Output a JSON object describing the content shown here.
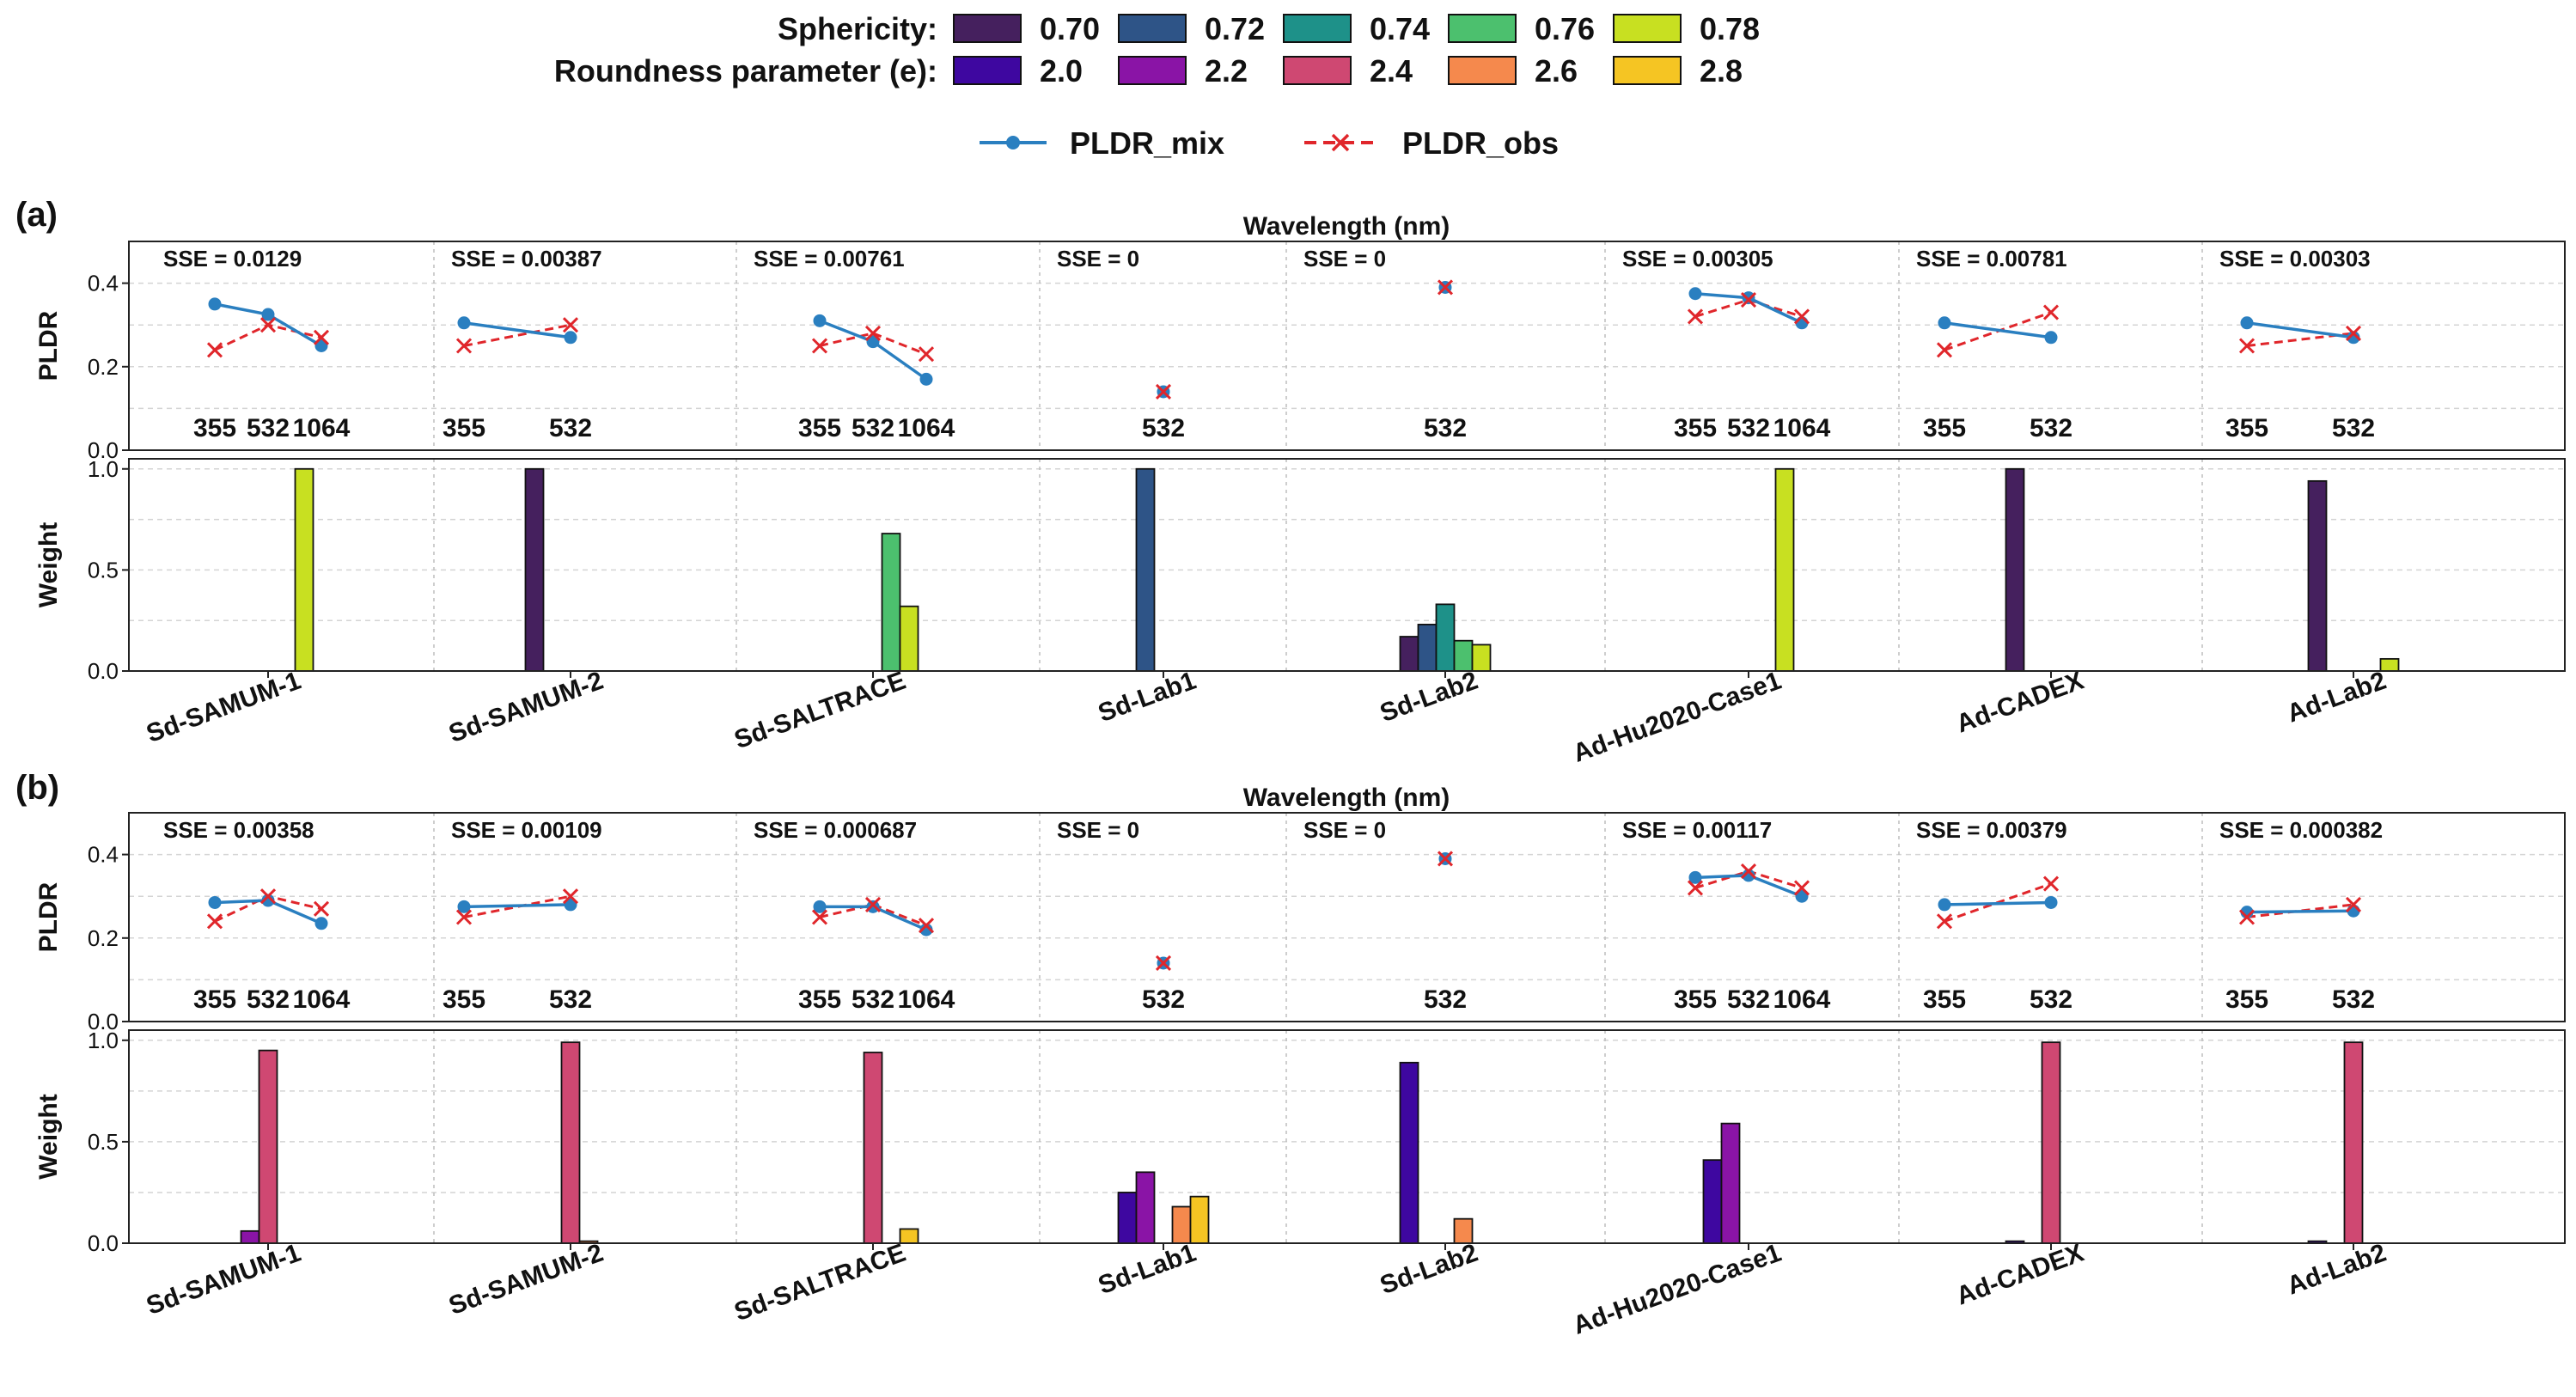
{
  "legend": {
    "sphericity_label": "Sphericity:",
    "sphericity_items": [
      {
        "label": "0.70",
        "color": "#45205e"
      },
      {
        "label": "0.72",
        "color": "#2e5487"
      },
      {
        "label": "0.74",
        "color": "#1e9189"
      },
      {
        "label": "0.76",
        "color": "#4cc06e"
      },
      {
        "label": "0.78",
        "color": "#c8e021"
      }
    ],
    "roundness_label": "Roundness parameter (e):",
    "roundness_items": [
      {
        "label": "2.0",
        "color": "#3e07a0"
      },
      {
        "label": "2.2",
        "color": "#8a14a6"
      },
      {
        "label": "2.4",
        "color": "#cf4872"
      },
      {
        "label": "2.6",
        "color": "#f5894d"
      },
      {
        "label": "2.8",
        "color": "#f5c523"
      }
    ],
    "lines": [
      {
        "label": "PLDR_mix",
        "color": "#2a7fc0",
        "marker": "circle",
        "style": "solid"
      },
      {
        "label": "PLDR_obs",
        "color": "#e0262b",
        "marker": "x",
        "style": "dashed"
      }
    ]
  },
  "panel_labels": [
    "(a)",
    "(b)"
  ],
  "chart_data": [
    {
      "panel": "(a)",
      "type": "line+bar",
      "color_key": "sphericity",
      "categories": [
        "Sd-SAMUM-1",
        "Sd-SAMUM-2",
        "Sd-SALTRACE",
        "Sd-Lab1",
        "Sd-Lab2",
        "Ad-Hu2020-Case1",
        "Ad-CADEX",
        "Ad-Lab2"
      ],
      "pldr": {
        "title": "Wavelength (nm)",
        "ylabel": "PLDR",
        "ylim": [
          0,
          0.5
        ],
        "yticks": [
          "0.0",
          "0.2",
          "0.4"
        ],
        "groups": [
          {
            "sse": "SSE = 0.0129",
            "wavelengths": [
              "355",
              "532",
              "1064"
            ],
            "mix": [
              0.35,
              0.325,
              0.25
            ],
            "obs": [
              0.24,
              0.3,
              0.27
            ]
          },
          {
            "sse": "SSE = 0.00387",
            "wavelengths": [
              "355",
              "532"
            ],
            "mix": [
              0.305,
              0.27
            ],
            "obs": [
              0.25,
              0.3
            ]
          },
          {
            "sse": "SSE = 0.00761",
            "wavelengths": [
              "355",
              "532",
              "1064"
            ],
            "mix": [
              0.31,
              0.26,
              0.17
            ],
            "obs": [
              0.25,
              0.28,
              0.23
            ]
          },
          {
            "sse": "SSE = 0",
            "wavelengths": [
              "532"
            ],
            "mix": [
              0.14
            ],
            "obs": [
              0.14
            ]
          },
          {
            "sse": "SSE = 0",
            "wavelengths": [
              "532"
            ],
            "mix": [
              0.39
            ],
            "obs": [
              0.39
            ]
          },
          {
            "sse": "SSE = 0.00305",
            "wavelengths": [
              "355",
              "532",
              "1064"
            ],
            "mix": [
              0.375,
              0.365,
              0.305
            ],
            "obs": [
              0.32,
              0.36,
              0.32
            ]
          },
          {
            "sse": "SSE = 0.00781",
            "wavelengths": [
              "355",
              "532"
            ],
            "mix": [
              0.305,
              0.27
            ],
            "obs": [
              0.24,
              0.33
            ]
          },
          {
            "sse": "SSE = 0.00303",
            "wavelengths": [
              "355",
              "532"
            ],
            "mix": [
              0.305,
              0.27
            ],
            "obs": [
              0.25,
              0.28
            ]
          }
        ]
      },
      "weights": {
        "ylabel": "Weight",
        "ylim": [
          0,
          1.05
        ],
        "yticks": [
          "0.0",
          "0.5",
          "1.0"
        ],
        "series_labels": [
          "0.70",
          "0.72",
          "0.74",
          "0.76",
          "0.78"
        ],
        "values": [
          [
            0,
            0,
            0,
            0,
            1.0
          ],
          [
            1.0,
            0,
            0,
            0,
            0
          ],
          [
            0,
            0,
            0,
            0.68,
            0.32
          ],
          [
            0,
            1.0,
            0,
            0,
            0
          ],
          [
            0.17,
            0.23,
            0.33,
            0.15,
            0.13
          ],
          [
            0,
            0,
            0,
            0,
            1.0
          ],
          [
            1.0,
            0,
            0,
            0,
            0
          ],
          [
            0.94,
            0,
            0,
            0,
            0.06
          ]
        ]
      }
    },
    {
      "panel": "(b)",
      "type": "line+bar",
      "color_key": "roundness",
      "categories": [
        "Sd-SAMUM-1",
        "Sd-SAMUM-2",
        "Sd-SALTRACE",
        "Sd-Lab1",
        "Sd-Lab2",
        "Ad-Hu2020-Case1",
        "Ad-CADEX",
        "Ad-Lab2"
      ],
      "pldr": {
        "title": "Wavelength (nm)",
        "ylabel": "PLDR",
        "ylim": [
          0,
          0.5
        ],
        "yticks": [
          "0.0",
          "0.2",
          "0.4"
        ],
        "groups": [
          {
            "sse": "SSE = 0.00358",
            "wavelengths": [
              "355",
              "532",
              "1064"
            ],
            "mix": [
              0.285,
              0.29,
              0.235
            ],
            "obs": [
              0.24,
              0.3,
              0.27
            ]
          },
          {
            "sse": "SSE = 0.00109",
            "wavelengths": [
              "355",
              "532"
            ],
            "mix": [
              0.275,
              0.28
            ],
            "obs": [
              0.25,
              0.3
            ]
          },
          {
            "sse": "SSE = 0.000687",
            "wavelengths": [
              "355",
              "532",
              "1064"
            ],
            "mix": [
              0.275,
              0.275,
              0.22
            ],
            "obs": [
              0.25,
              0.28,
              0.23
            ]
          },
          {
            "sse": "SSE = 0",
            "wavelengths": [
              "532"
            ],
            "mix": [
              0.14
            ],
            "obs": [
              0.14
            ]
          },
          {
            "sse": "SSE = 0",
            "wavelengths": [
              "532"
            ],
            "mix": [
              0.39
            ],
            "obs": [
              0.39
            ]
          },
          {
            "sse": "SSE = 0.00117",
            "wavelengths": [
              "355",
              "532",
              "1064"
            ],
            "mix": [
              0.345,
              0.35,
              0.3
            ],
            "obs": [
              0.32,
              0.36,
              0.32
            ]
          },
          {
            "sse": "SSE = 0.00379",
            "wavelengths": [
              "355",
              "532"
            ],
            "mix": [
              0.28,
              0.285
            ],
            "obs": [
              0.24,
              0.33
            ]
          },
          {
            "sse": "SSE = 0.000382",
            "wavelengths": [
              "355",
              "532"
            ],
            "mix": [
              0.262,
              0.265
            ],
            "obs": [
              0.25,
              0.28
            ]
          }
        ]
      },
      "weights": {
        "ylabel": "Weight",
        "ylim": [
          0,
          1.05
        ],
        "yticks": [
          "0.0",
          "0.5",
          "1.0"
        ],
        "series_labels": [
          "2.0",
          "2.2",
          "2.4",
          "2.6",
          "2.8"
        ],
        "values": [
          [
            0,
            0.06,
            0.95,
            0,
            0
          ],
          [
            0,
            0,
            0.99,
            0.01,
            0
          ],
          [
            0,
            0,
            0.94,
            0,
            0.07
          ],
          [
            0.25,
            0.35,
            0,
            0.18,
            0.23
          ],
          [
            0.89,
            0,
            0,
            0.12,
            0
          ],
          [
            0.41,
            0.59,
            0,
            0,
            0
          ],
          [
            0.01,
            0,
            0.99,
            0,
            0
          ],
          [
            0.01,
            0,
            0.99,
            0,
            0
          ]
        ]
      }
    }
  ]
}
